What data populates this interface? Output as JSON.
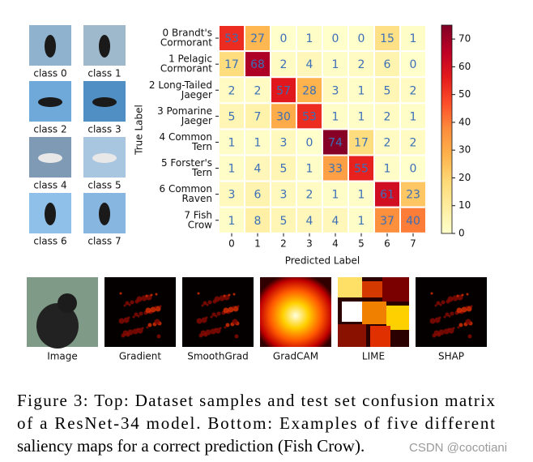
{
  "samples": {
    "labels": [
      "class 0",
      "class 1",
      "class 2",
      "class 3",
      "class 4",
      "class 5",
      "class 6",
      "class 7"
    ]
  },
  "chart_data": {
    "type": "heatmap",
    "x_label": "Predicted Label",
    "y_label": "True Label",
    "x_categories": [
      "0",
      "1",
      "2",
      "3",
      "4",
      "5",
      "6",
      "7"
    ],
    "y_categories": [
      [
        "0 Brandt's",
        "Cormorant"
      ],
      [
        "1 Pelagic",
        "Cormorant"
      ],
      [
        "2 Long-Tailed",
        "Jaeger"
      ],
      [
        "3 Pomarine",
        "Jaeger"
      ],
      [
        "4 Common",
        "Tern"
      ],
      [
        "5 Forster's",
        "Tern"
      ],
      [
        "6 Common",
        "Raven"
      ],
      [
        "7 Fish",
        "Crow"
      ]
    ],
    "values": [
      [
        53,
        27,
        0,
        1,
        0,
        0,
        15,
        1
      ],
      [
        17,
        68,
        2,
        4,
        1,
        2,
        6,
        0
      ],
      [
        2,
        2,
        57,
        28,
        3,
        1,
        5,
        2
      ],
      [
        5,
        7,
        30,
        53,
        1,
        1,
        2,
        1
      ],
      [
        1,
        1,
        3,
        0,
        74,
        17,
        2,
        2
      ],
      [
        1,
        4,
        5,
        1,
        33,
        55,
        1,
        0
      ],
      [
        3,
        6,
        3,
        2,
        1,
        1,
        61,
        23
      ],
      [
        1,
        8,
        5,
        4,
        4,
        1,
        37,
        40
      ]
    ],
    "colormap": "YlOrRd",
    "clim": [
      0,
      75
    ],
    "cticks": [
      0,
      10,
      20,
      30,
      40,
      50,
      60,
      70
    ]
  },
  "saliency": {
    "labels": [
      "Image",
      "Gradient",
      "SmoothGrad",
      "GradCAM",
      "LIME",
      "SHAP"
    ]
  },
  "caption": {
    "lines": [
      "Figure 3: Top: Dataset samples and test set confusion matrix",
      "of a ResNet-34 model. Bottom: Examples of five different",
      "saliency maps for a correct prediction (Fish Crow)."
    ]
  },
  "watermark": "CSDN @cocotiani"
}
